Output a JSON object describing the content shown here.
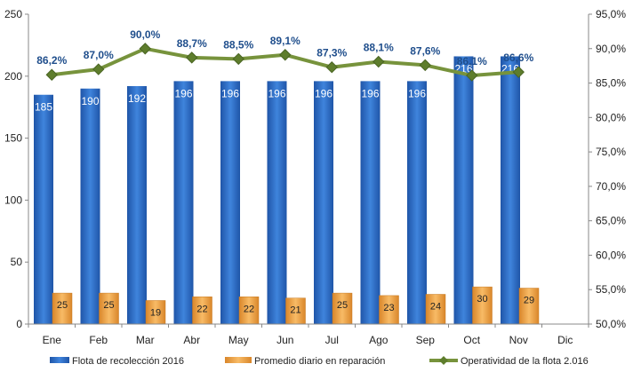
{
  "chart_data": {
    "type": "bar",
    "categories": [
      "Ene",
      "Feb",
      "Mar",
      "Abr",
      "May",
      "Jun",
      "Jul",
      "Ago",
      "Sep",
      "Oct",
      "Nov",
      "Dic"
    ],
    "series": [
      {
        "name": "Flota de recolección 2016",
        "type": "bar",
        "axis": "left",
        "color": "#2f6fc9",
        "values": [
          185,
          190,
          192,
          196,
          196,
          196,
          196,
          196,
          196,
          216,
          216,
          null
        ]
      },
      {
        "name": "Promedio diario en reparación",
        "type": "bar",
        "axis": "left",
        "color": "#f0a040",
        "values": [
          25,
          25,
          19,
          22,
          22,
          21,
          25,
          23,
          24,
          30,
          29,
          null
        ]
      },
      {
        "name": "Operatividad de la flota 2.016",
        "type": "line",
        "axis": "right",
        "color": "#77933c",
        "values": [
          86.2,
          87.0,
          90.0,
          88.7,
          88.5,
          89.1,
          87.3,
          88.1,
          87.6,
          86.1,
          86.6,
          null
        ]
      }
    ],
    "pct_labels": [
      "86,2%",
      "87,0%",
      "90,0%",
      "88,7%",
      "88,5%",
      "89,1%",
      "87,3%",
      "88,1%",
      "87,6%",
      "86,1%",
      "86,6%",
      ""
    ],
    "y_left": {
      "min": 0,
      "max": 250,
      "ticks": [
        "0",
        "50",
        "100",
        "150",
        "200",
        "250"
      ],
      "tick_values": [
        0,
        50,
        100,
        150,
        200,
        250
      ]
    },
    "y_right": {
      "min": 50,
      "max": 95,
      "ticks": [
        "50,0%",
        "55,0%",
        "60,0%",
        "65,0%",
        "70,0%",
        "75,0%",
        "80,0%",
        "85,0%",
        "90,0%",
        "95,0%"
      ],
      "tick_values": [
        50,
        55,
        60,
        65,
        70,
        75,
        80,
        85,
        90,
        95
      ]
    },
    "legend_position": "bottom",
    "grid": false
  }
}
